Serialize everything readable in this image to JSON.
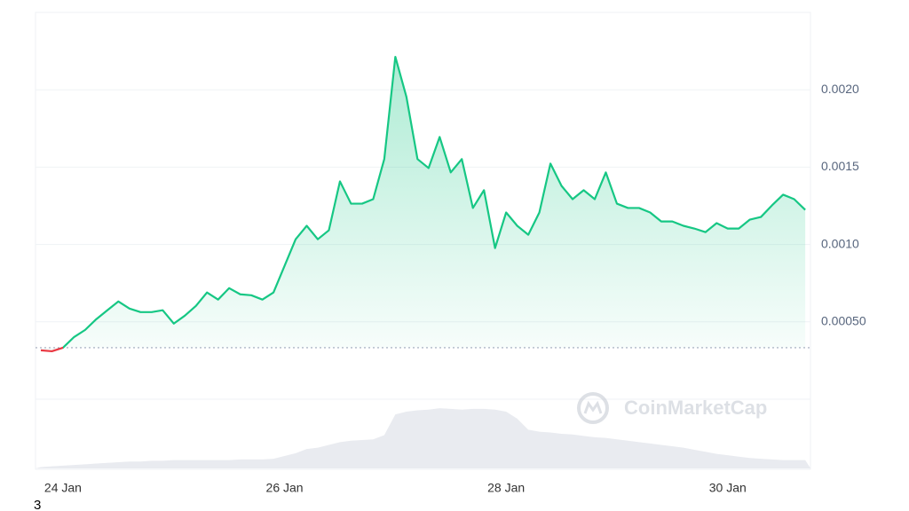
{
  "chart_data": {
    "type": "line",
    "watermark": "CoinMarketCap",
    "categories": [
      null,
      null,
      "24 Jan",
      null,
      null,
      null,
      null,
      null,
      null,
      null,
      null,
      null,
      null,
      null,
      null,
      null,
      null,
      null,
      null,
      null,
      null,
      null,
      "26 Jan",
      null,
      null,
      null,
      null,
      null,
      null,
      null,
      null,
      null,
      null,
      null,
      null,
      null,
      null,
      null,
      null,
      null,
      null,
      null,
      "28 Jan",
      null,
      null,
      null,
      null,
      null,
      null,
      null,
      null,
      null,
      null,
      null,
      null,
      null,
      null,
      null,
      null,
      null,
      null,
      null,
      "30 Jan",
      null,
      null,
      null,
      null,
      null,
      null,
      null
    ],
    "series": [
      {
        "color": "#16c784",
        "negative_color": "#ea3943",
        "values": [
          0.000316,
          0.00031,
          0.000333,
          0.000402,
          0.000448,
          0.000517,
          0.000575,
          0.000632,
          0.000586,
          0.000563,
          0.000563,
          0.000575,
          0.000489,
          0.00054,
          0.000603,
          0.00069,
          0.000644,
          0.000718,
          0.000678,
          0.000672,
          0.000644,
          0.00069,
          0.000862,
          0.001034,
          0.001121,
          0.001034,
          0.001092,
          0.001408,
          0.001264,
          0.001264,
          0.001293,
          0.001552,
          0.002213,
          0.001954,
          0.001552,
          0.001494,
          0.001695,
          0.001466,
          0.001552,
          0.001236,
          0.001351,
          0.000977,
          0.001207,
          0.001121,
          0.001063,
          0.001207,
          0.001523,
          0.001379,
          0.001293,
          0.001351,
          0.001293,
          0.001466,
          0.001264,
          0.001236,
          0.001236,
          0.001207,
          0.001149,
          0.001149,
          0.001121,
          0.001103,
          0.00108,
          0.001138,
          0.001103,
          0.001103,
          0.001161,
          0.001178,
          0.001253,
          0.001322,
          0.001293,
          0.001224
        ]
      },
      {
        "axis": "y2",
        "type": "area",
        "color": "#e9ebf0",
        "values": [
          2,
          3,
          4,
          5,
          6,
          7,
          8,
          9,
          10,
          10,
          11,
          11,
          12,
          12,
          12,
          12,
          12,
          12,
          13,
          13,
          13,
          14,
          18,
          22,
          28,
          30,
          34,
          38,
          40,
          41,
          42,
          48,
          78,
          82,
          84,
          85,
          87,
          86,
          85,
          86,
          86,
          85,
          82,
          72,
          56,
          53,
          52,
          50,
          49,
          47,
          45,
          44,
          42,
          40,
          38,
          36,
          34,
          32,
          30,
          27,
          24,
          21,
          19,
          17,
          15,
          14,
          13,
          12,
          12,
          12
        ]
      }
    ],
    "baseline": 0.000333,
    "ylim": [
      0,
      0.0025
    ],
    "yticks": [
      {
        "value": 0.0005,
        "label": "0.00050"
      },
      {
        "value": 0.001,
        "label": "0.0010"
      },
      {
        "value": 0.0015,
        "label": "0.0015"
      },
      {
        "value": 0.002,
        "label": "0.0020"
      }
    ],
    "y2lim": [
      0,
      100
    ],
    "grid": true
  },
  "page_label": "3"
}
